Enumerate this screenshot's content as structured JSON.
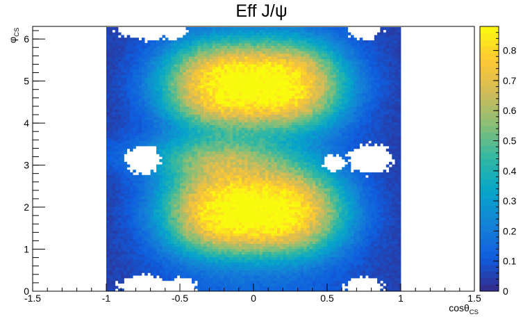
{
  "chart_data": {
    "type": "heatmap",
    "title": "Eff J/ψ",
    "xlabel": {
      "main": "cosθ",
      "sub": "CS"
    },
    "ylabel": {
      "main": "φ",
      "sub": "CS"
    },
    "xlim": [
      -1.5,
      1.5
    ],
    "ylim": [
      0,
      6.3
    ],
    "data_xrange": [
      -1,
      1
    ],
    "data_yrange": [
      0,
      6.283
    ],
    "bins": {
      "x": 100,
      "y": 100
    },
    "x_ticks": [
      "-1.5",
      "-1",
      "-0.5",
      "0",
      "0.5",
      "1",
      "1.5"
    ],
    "y_ticks": [
      "0",
      "1",
      "2",
      "3",
      "4",
      "5",
      "6"
    ],
    "z_range": [
      0,
      0.88
    ],
    "colorbar_ticks": [
      "0",
      "0.1",
      "0.2",
      "0.3",
      "0.4",
      "0.5",
      "0.6",
      "0.7",
      "0.8"
    ],
    "colormap": "parula",
    "colormap_stops": [
      "#352a87",
      "#0f5cdd",
      "#1481d6",
      "#06a4ca",
      "#2eb7a4",
      "#87bf77",
      "#d1bb59",
      "#fec832",
      "#f9fb0e"
    ],
    "empty_bin_color": "#ffffff",
    "features": [
      {
        "desc": "upper efficiency lobe",
        "cos": 0.0,
        "phi": 4.9,
        "value": 0.8
      },
      {
        "desc": "lower efficiency lobe",
        "cos": 0.0,
        "phi": 1.9,
        "value": 0.82
      },
      {
        "desc": "empty region",
        "cos": -0.75,
        "phi": 3.14
      },
      {
        "desc": "empty region",
        "cos": 0.75,
        "phi": 3.14
      },
      {
        "desc": "empty region",
        "cos": -0.75,
        "phi": 6.2
      },
      {
        "desc": "empty region",
        "cos": 0.75,
        "phi": 6.2
      },
      {
        "desc": "empty region",
        "cos": -0.75,
        "phi": 0.1
      },
      {
        "desc": "empty region",
        "cos": 0.75,
        "phi": 0.1
      }
    ]
  }
}
